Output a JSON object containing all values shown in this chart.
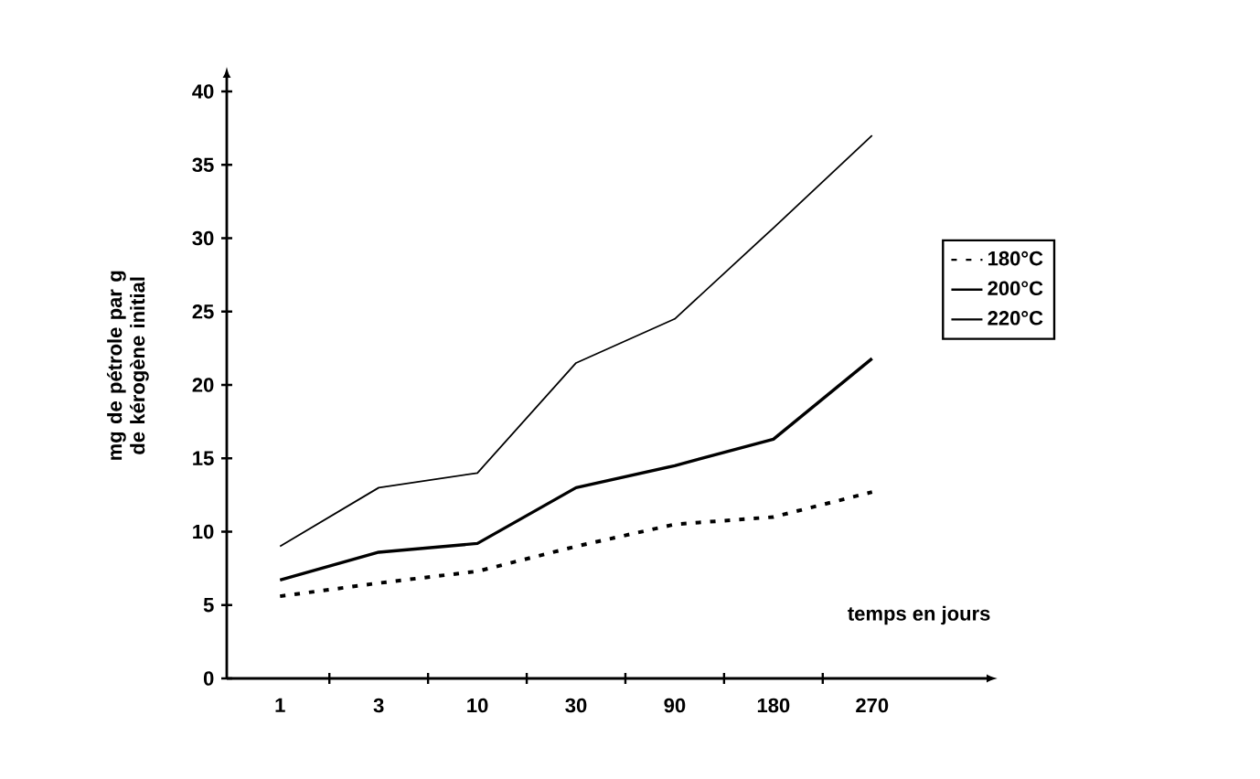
{
  "chart_data": {
    "type": "line",
    "xlabel": "temps en jours",
    "ylabel": "mg de pétrole par g de kérogène initial",
    "categories": [
      "1",
      "3",
      "10",
      "30",
      "90",
      "180",
      "270"
    ],
    "series": [
      {
        "name": "180°C",
        "color": "#000000",
        "line_style": "dashed",
        "values": [
          5.6,
          6.5,
          7.3,
          9,
          10.5,
          11,
          12.7
        ]
      },
      {
        "name": "200°C",
        "color": "#000000",
        "line_style": "solid",
        "values": [
          6.7,
          8.6,
          9.2,
          13,
          14.5,
          16.3,
          21.8
        ]
      },
      {
        "name": "220°C",
        "color": "#000000",
        "line_style": "solid",
        "values": [
          9,
          13,
          14,
          21.5,
          24.5,
          30.7,
          37
        ]
      }
    ],
    "ylim": [
      0,
      41
    ],
    "yticks": [
      0,
      5,
      10,
      15,
      20,
      25,
      30,
      35,
      40
    ],
    "grid": false,
    "legend": "right",
    "marker": "none"
  }
}
